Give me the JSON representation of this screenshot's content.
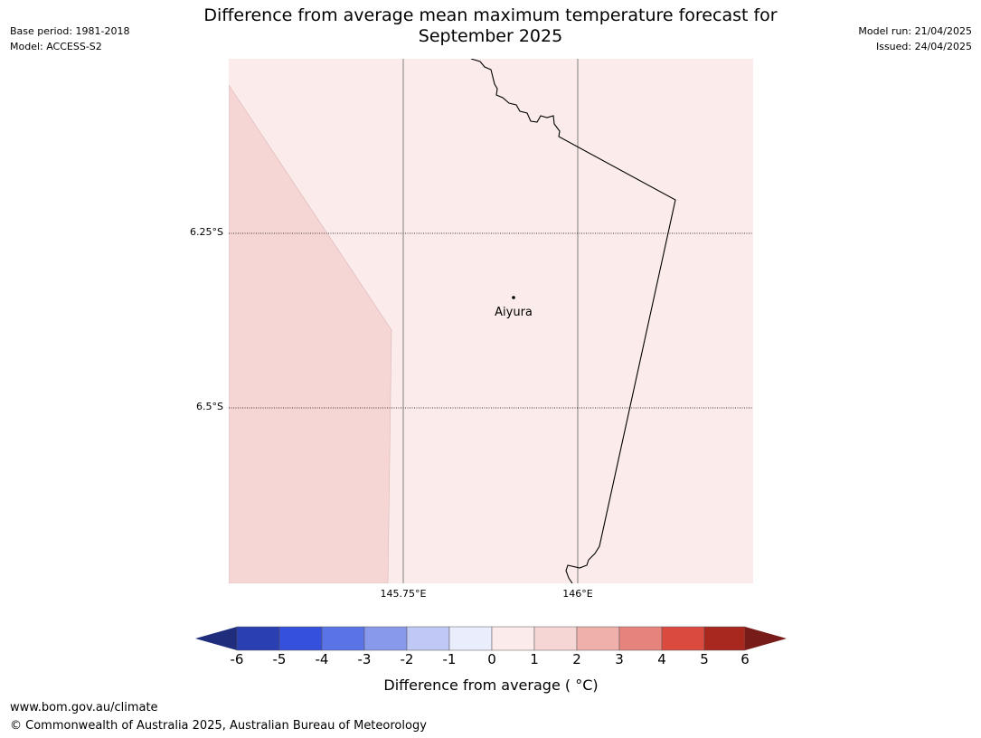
{
  "header": {
    "title_line1": "Difference from average mean maximum temperature forecast for",
    "title_line2": "September 2025",
    "base_period": "Base period: 1981-2018",
    "model": "Model: ACCESS-S2",
    "model_run": "Model run: 21/04/2025",
    "issued": "Issued: 24/04/2025"
  },
  "map": {
    "latitude_labels": [
      "6.25°S",
      "6.5°S"
    ],
    "longitude_labels": [
      "145.75°E",
      "146°E"
    ],
    "place_label": "Aiyura",
    "colors": {
      "background_anomaly_0_1": "#fbebea",
      "region_anomaly_1_2": "#f6d6d4",
      "border": "#000000",
      "gridline": "#808080"
    }
  },
  "colorbar": {
    "label": "Difference from average ( °C)",
    "tick_labels": [
      "-6",
      "-5",
      "-4",
      "-3",
      "-2",
      "-1",
      "0",
      "1",
      "2",
      "3",
      "4",
      "5",
      "6"
    ],
    "colors": [
      "#1f2d7c",
      "#2a3fb2",
      "#3550dd",
      "#5a73e6",
      "#8899ec",
      "#c0c8f5",
      "#eaedfc",
      "#fbebea",
      "#f6d6d4",
      "#efafab",
      "#e6837c",
      "#db4a3e",
      "#a8281f",
      "#771c18"
    ]
  },
  "footer": {
    "url": "www.bom.gov.au/climate",
    "copyright": "© Commonwealth of Australia 2025, Australian Bureau of Meteorology"
  }
}
